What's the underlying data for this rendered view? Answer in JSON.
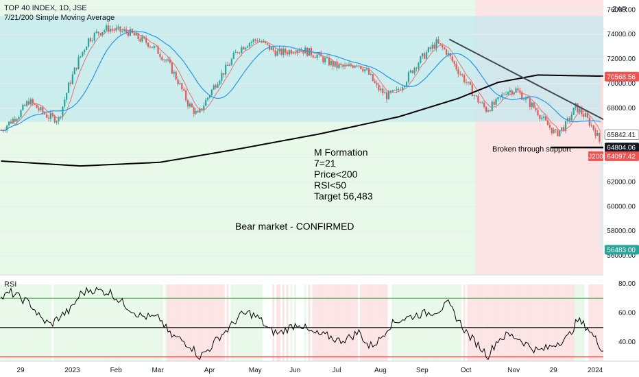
{
  "header": {
    "title": "TOP 40 INDEX, 1D, JSE",
    "subtitle": "7/21/200 Simple Moving Average",
    "currency": "ZAR"
  },
  "colors": {
    "up": "#26a69a",
    "down": "#ef5350",
    "sma7": "#e57373",
    "sma21": "#2196f3",
    "sma200": "#000000",
    "bull_zone": "#e8f8e9",
    "bear_zone": "#fde4e4",
    "range_box": "#bfe8ee",
    "target_zone": "#d8eeec",
    "stop_zone": "#fcdcdc"
  },
  "chart_data": [
    {
      "type": "candlestick",
      "ylim": [
        54500,
        76800
      ],
      "y_ticks": [
        "76000.00",
        "74000.00",
        "72000.00",
        "70000.00",
        "68000.00",
        "66000.00",
        "64000.00",
        "62000.00",
        "60000.00",
        "58000.00",
        "56000.00"
      ],
      "x_ticks": [
        "29",
        "2023",
        "Feb",
        "Mar",
        "Apr",
        "May",
        "Jun",
        "Jul",
        "Aug",
        "Sep",
        "Oct",
        "Nov",
        "29",
        "2024"
      ],
      "price_path": [
        [
          0,
          66200
        ],
        [
          4,
          66800
        ],
        [
          9,
          67500
        ],
        [
          14,
          68600
        ],
        [
          19,
          67900
        ],
        [
          24,
          67300
        ],
        [
          29,
          67100
        ],
        [
          34,
          69800
        ],
        [
          39,
          71900
        ],
        [
          44,
          73600
        ],
        [
          49,
          74200
        ],
        [
          54,
          74500
        ],
        [
          59,
          74300
        ],
        [
          64,
          74200
        ],
        [
          69,
          73700
        ],
        [
          74,
          73300
        ],
        [
          79,
          72600
        ],
        [
          84,
          71700
        ],
        [
          89,
          70200
        ],
        [
          94,
          68400
        ],
        [
          99,
          67400
        ],
        [
          104,
          68900
        ],
        [
          109,
          70300
        ],
        [
          114,
          71400
        ],
        [
          119,
          72700
        ],
        [
          124,
          73300
        ],
        [
          129,
          73600
        ],
        [
          134,
          73000
        ],
        [
          139,
          72500
        ],
        [
          144,
          72600
        ],
        [
          149,
          72900
        ],
        [
          154,
          72600
        ],
        [
          159,
          72300
        ],
        [
          164,
          71800
        ],
        [
          169,
          71400
        ],
        [
          174,
          71300
        ],
        [
          179,
          71700
        ],
        [
          184,
          71000
        ],
        [
          189,
          69700
        ],
        [
          194,
          69000
        ],
        [
          199,
          69300
        ],
        [
          204,
          70400
        ],
        [
          209,
          71600
        ],
        [
          214,
          72500
        ],
        [
          219,
          73300
        ],
        [
          224,
          72600
        ],
        [
          229,
          71300
        ],
        [
          234,
          70100
        ],
        [
          239,
          68800
        ],
        [
          244,
          67900
        ],
        [
          249,
          68400
        ],
        [
          254,
          69400
        ],
        [
          259,
          69500
        ],
        [
          264,
          68700
        ],
        [
          269,
          67900
        ],
        [
          274,
          66800
        ],
        [
          279,
          65900
        ],
        [
          284,
          66600
        ],
        [
          289,
          68100
        ],
        [
          294,
          67300
        ],
        [
          299,
          66100
        ],
        [
          304,
          64100
        ]
      ],
      "ohlc_last": {
        "open": 64804.06,
        "close": 64097.42
      },
      "last_label": "J200",
      "price_labels": [
        {
          "value": 70568.56,
          "kind": "stop",
          "label": "70568.56"
        },
        {
          "value": 65842.41,
          "kind": "entry",
          "label": "65842.41"
        },
        {
          "value": 64804.06,
          "kind": "support",
          "label": "64804.06"
        },
        {
          "value": 64097.42,
          "kind": "last",
          "label": "64097.42"
        },
        {
          "value": 56483.0,
          "kind": "target",
          "label": "56483.00"
        }
      ],
      "sma200_path": [
        [
          0,
          63700
        ],
        [
          40,
          63300
        ],
        [
          80,
          63600
        ],
        [
          120,
          64700
        ],
        [
          160,
          65900
        ],
        [
          200,
          67300
        ],
        [
          230,
          68800
        ],
        [
          250,
          70100
        ],
        [
          270,
          70700
        ],
        [
          304,
          70600
        ]
      ],
      "range_box": {
        "x0": 0,
        "x1": 304,
        "y0": 66900,
        "y1": 75500
      },
      "zones": [
        {
          "kind": "bull",
          "x0": 0,
          "x1": 239
        },
        {
          "kind": "bear",
          "x0": 239,
          "x1": 304
        }
      ],
      "support_line": {
        "x0": 277,
        "x1": 380,
        "y": 64804.06
      },
      "trendline": {
        "x0": 226,
        "y0": 73600,
        "x1": 320,
        "y1": 65700
      },
      "position": {
        "x0": 302,
        "x1": 348,
        "entry": 65842.41,
        "stop": 70568.56,
        "target": 56483.0
      },
      "projection_arrow": {
        "x0": 307,
        "y0": 64300,
        "x1": 326,
        "y1": 57000
      },
      "annotations": {
        "m_formation": [
          "M Formation",
          "7=21",
          "Price<200",
          "RSI<50",
          "Target 56,483"
        ],
        "support_text": "Broken through support",
        "bear_text": "Bear market - CONFIRMED"
      }
    },
    {
      "type": "line",
      "name": "RSI",
      "ylim": [
        27,
        86
      ],
      "y_ticks": [
        "80.00",
        "60.00",
        "40.00"
      ],
      "levels": {
        "upper": 70,
        "middle": 50,
        "lower": 30
      },
      "values_path": [
        [
          0,
          70
        ],
        [
          5,
          74
        ],
        [
          10,
          70
        ],
        [
          15,
          66
        ],
        [
          20,
          56
        ],
        [
          25,
          52
        ],
        [
          30,
          58
        ],
        [
          35,
          62
        ],
        [
          40,
          73
        ],
        [
          45,
          76
        ],
        [
          50,
          75
        ],
        [
          55,
          74
        ],
        [
          60,
          68
        ],
        [
          65,
          63
        ],
        [
          70,
          58
        ],
        [
          75,
          57
        ],
        [
          80,
          56
        ],
        [
          85,
          45
        ],
        [
          90,
          42
        ],
        [
          95,
          38
        ],
        [
          100,
          30
        ],
        [
          105,
          36
        ],
        [
          110,
          44
        ],
        [
          115,
          50
        ],
        [
          120,
          58
        ],
        [
          125,
          60
        ],
        [
          130,
          56
        ],
        [
          135,
          48
        ],
        [
          140,
          46
        ],
        [
          145,
          50
        ],
        [
          150,
          53
        ],
        [
          155,
          47
        ],
        [
          160,
          45
        ],
        [
          165,
          44
        ],
        [
          170,
          41
        ],
        [
          175,
          43
        ],
        [
          180,
          47
        ],
        [
          185,
          37
        ],
        [
          190,
          41
        ],
        [
          195,
          51
        ],
        [
          200,
          55
        ],
        [
          205,
          57
        ],
        [
          210,
          59
        ],
        [
          215,
          60
        ],
        [
          220,
          62
        ],
        [
          225,
          66
        ],
        [
          230,
          55
        ],
        [
          235,
          45
        ],
        [
          240,
          38
        ],
        [
          245,
          31
        ],
        [
          250,
          42
        ],
        [
          255,
          45
        ],
        [
          260,
          43
        ],
        [
          265,
          38
        ],
        [
          270,
          34
        ],
        [
          275,
          36
        ],
        [
          280,
          40
        ],
        [
          285,
          43
        ],
        [
          290,
          55
        ],
        [
          295,
          50
        ],
        [
          300,
          40
        ],
        [
          304,
          33
        ]
      ]
    }
  ]
}
